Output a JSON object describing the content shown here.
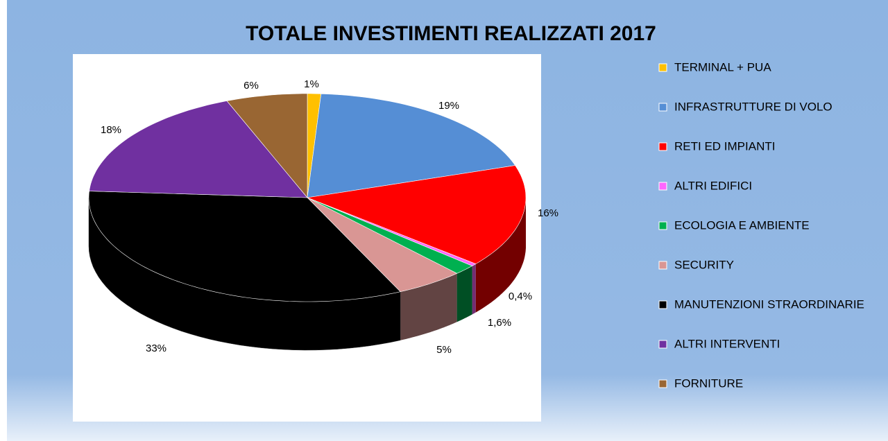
{
  "chart_data": {
    "type": "pie",
    "title": "TOTALE INVESTIMENTI REALIZZATI 2017",
    "categories": [
      "TERMINAL + PUA",
      "INFRASTRUTTURE DI VOLO",
      "RETI ED IMPIANTI",
      "ALTRI EDIFICI",
      "ECOLOGIA E AMBIENTE",
      "SECURITY",
      "MANUTENZIONI STRAORDINARIE",
      "ALTRI INTERVENTI",
      "FORNITURE"
    ],
    "values": [
      1,
      19,
      16,
      0.4,
      1.6,
      5,
      33,
      18,
      6
    ],
    "value_labels": [
      "1%",
      "19%",
      "16%",
      "0,4%",
      "1,6%",
      "5%",
      "33%",
      "18%",
      "6%"
    ],
    "colors": [
      "#ffc000",
      "#558ed5",
      "#ff0000",
      "#ff66ff",
      "#00b050",
      "#d99694",
      "#000000",
      "#7030a0",
      "#996633"
    ],
    "legend": "right"
  }
}
